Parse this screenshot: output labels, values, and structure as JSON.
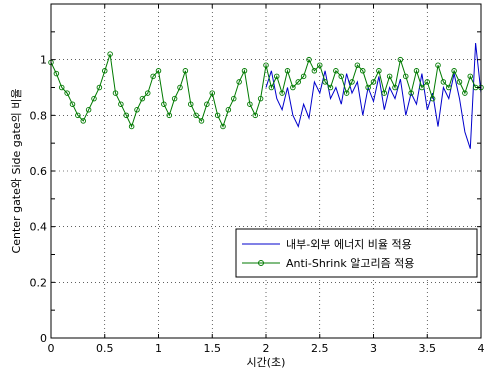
{
  "chart_data": {
    "type": "line",
    "title": "",
    "xlabel": "시간(초)",
    "ylabel": "Center gate와 Side gate의 비율",
    "xlim": [
      0,
      4
    ],
    "ylim": [
      0,
      1.2
    ],
    "x_ticks": [
      "0",
      "0.5",
      "1",
      "1.5",
      "2",
      "2.5",
      "3",
      "3.5",
      "4"
    ],
    "y_ticks": [
      "0",
      "0.2",
      "0.4",
      "0.6",
      "0.8",
      "1"
    ],
    "grid": true,
    "legend_position": "bottom-right",
    "series": [
      {
        "name": "내부-외부 에너지 비율 적용",
        "color": "#0000cc",
        "marker": "none",
        "x": [
          2.0,
          2.05,
          2.1,
          2.15,
          2.2,
          2.25,
          2.3,
          2.35,
          2.4,
          2.45,
          2.5,
          2.55,
          2.6,
          2.65,
          2.7,
          2.75,
          2.8,
          2.85,
          2.9,
          2.95,
          3.0,
          3.05,
          3.1,
          3.15,
          3.2,
          3.25,
          3.3,
          3.35,
          3.4,
          3.45,
          3.5,
          3.55,
          3.6,
          3.65,
          3.7,
          3.75,
          3.8,
          3.85,
          3.9,
          3.95,
          4.0
        ],
        "y": [
          0.9,
          0.96,
          0.86,
          0.82,
          0.9,
          0.8,
          0.76,
          0.84,
          0.79,
          0.92,
          0.88,
          0.96,
          0.86,
          0.9,
          0.84,
          0.95,
          0.88,
          0.92,
          0.8,
          0.9,
          0.85,
          0.94,
          0.82,
          0.9,
          0.86,
          0.93,
          0.8,
          0.88,
          0.84,
          0.95,
          0.82,
          0.88,
          0.76,
          0.9,
          0.86,
          0.95,
          0.86,
          0.74,
          0.68,
          1.06,
          0.88
        ]
      },
      {
        "name": "Anti-Shrink 알고리즘 적용",
        "color": "#007a00",
        "marker": "circle",
        "x": [
          0.0,
          0.05,
          0.1,
          0.15,
          0.2,
          0.25,
          0.3,
          0.35,
          0.4,
          0.45,
          0.5,
          0.55,
          0.6,
          0.65,
          0.7,
          0.75,
          0.8,
          0.85,
          0.9,
          0.95,
          1.0,
          1.05,
          1.1,
          1.15,
          1.2,
          1.25,
          1.3,
          1.35,
          1.4,
          1.45,
          1.5,
          1.55,
          1.6,
          1.65,
          1.7,
          1.75,
          1.8,
          1.85,
          1.9,
          1.95,
          2.0,
          2.05,
          2.1,
          2.15,
          2.2,
          2.25,
          2.3,
          2.35,
          2.4,
          2.45,
          2.5,
          2.55,
          2.6,
          2.65,
          2.7,
          2.75,
          2.8,
          2.85,
          2.9,
          2.95,
          3.0,
          3.05,
          3.1,
          3.15,
          3.2,
          3.25,
          3.3,
          3.35,
          3.4,
          3.45,
          3.5,
          3.55,
          3.6,
          3.65,
          3.7,
          3.75,
          3.8,
          3.85,
          3.9,
          3.95,
          4.0
        ],
        "y": [
          0.99,
          0.95,
          0.9,
          0.88,
          0.84,
          0.8,
          0.78,
          0.82,
          0.86,
          0.9,
          0.96,
          1.02,
          0.88,
          0.84,
          0.8,
          0.76,
          0.82,
          0.86,
          0.88,
          0.94,
          0.96,
          0.84,
          0.8,
          0.86,
          0.9,
          0.96,
          0.84,
          0.8,
          0.78,
          0.84,
          0.88,
          0.8,
          0.76,
          0.82,
          0.86,
          0.92,
          0.96,
          0.84,
          0.8,
          0.86,
          0.98,
          0.9,
          0.94,
          0.88,
          0.96,
          0.9,
          0.92,
          0.94,
          1.0,
          0.96,
          0.98,
          0.92,
          0.9,
          0.96,
          0.94,
          0.88,
          0.92,
          0.98,
          0.96,
          0.9,
          0.92,
          0.96,
          0.88,
          0.94,
          0.9,
          1.0,
          0.94,
          0.88,
          0.96,
          0.9,
          0.92,
          0.86,
          0.98,
          0.92,
          0.9,
          0.96,
          0.92,
          0.88,
          0.94,
          0.9,
          0.9
        ]
      }
    ]
  }
}
